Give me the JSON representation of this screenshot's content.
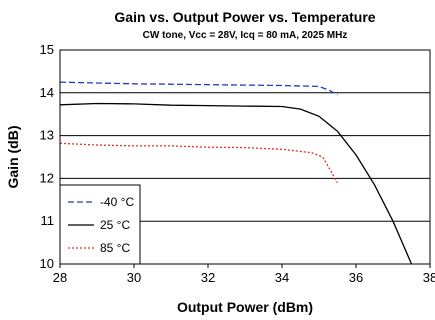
{
  "chart_data": {
    "type": "line",
    "title": "Gain vs. Output Power vs. Temperature",
    "subtitle": "CW tone, Vcc = 28V, Icq = 80 mA, 2025 MHz",
    "xlabel": "Output Power (dBm)",
    "ylabel": "Gain (dB)",
    "xlim": [
      28,
      38
    ],
    "ylim": [
      10,
      15
    ],
    "xticks": [
      "28",
      "30",
      "32",
      "34",
      "36",
      "38"
    ],
    "yticks": [
      "10",
      "11",
      "12",
      "13",
      "14",
      "15"
    ],
    "grid": "horizontal",
    "legend_position": "bottom-left",
    "series": [
      {
        "name": "-40 °C",
        "color": "#1f3fbf",
        "dash": "dashed",
        "points": [
          [
            28,
            14.25
          ],
          [
            29,
            14.23
          ],
          [
            30,
            14.21
          ],
          [
            31,
            14.2
          ],
          [
            32,
            14.19
          ],
          [
            33,
            14.18
          ],
          [
            34,
            14.17
          ],
          [
            35,
            14.15
          ],
          [
            35.3,
            14.05
          ],
          [
            35.5,
            13.95
          ]
        ]
      },
      {
        "name": "25 °C",
        "color": "#000000",
        "dash": "solid",
        "points": [
          [
            28,
            13.72
          ],
          [
            29,
            13.75
          ],
          [
            30,
            13.74
          ],
          [
            31,
            13.71
          ],
          [
            32,
            13.7
          ],
          [
            33,
            13.69
          ],
          [
            34,
            13.68
          ],
          [
            34.5,
            13.62
          ],
          [
            35,
            13.45
          ],
          [
            35.5,
            13.1
          ],
          [
            36,
            12.55
          ],
          [
            36.5,
            11.85
          ],
          [
            37,
            11.0
          ],
          [
            37.3,
            10.4
          ],
          [
            37.5,
            10.0
          ]
        ]
      },
      {
        "name": "85 °C",
        "color": "#e03020",
        "dash": "dotted",
        "points": [
          [
            28,
            12.82
          ],
          [
            29,
            12.78
          ],
          [
            30,
            12.76
          ],
          [
            31,
            12.76
          ],
          [
            32,
            12.73
          ],
          [
            33,
            12.72
          ],
          [
            34,
            12.68
          ],
          [
            34.8,
            12.6
          ],
          [
            35.1,
            12.5
          ],
          [
            35.3,
            12.2
          ],
          [
            35.5,
            11.9
          ]
        ]
      }
    ]
  }
}
